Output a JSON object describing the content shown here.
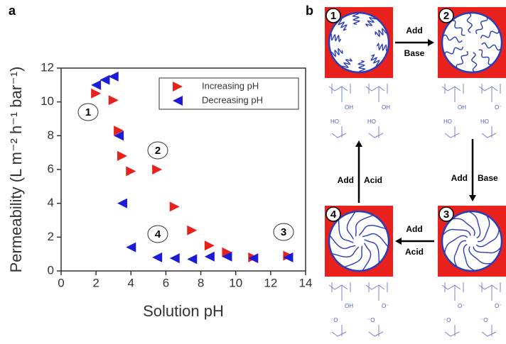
{
  "chart_data": {
    "type": "scatter",
    "panel_label": "a",
    "xlabel": "Solution pH",
    "ylabel": "Permeability (L m⁻² h⁻¹ bar⁻¹)",
    "xlim": [
      0,
      14
    ],
    "xticks": [
      0,
      2,
      4,
      6,
      8,
      10,
      12,
      14
    ],
    "ylim": [
      0,
      12
    ],
    "yticks": [
      0,
      2,
      4,
      6,
      8,
      10,
      12
    ],
    "legend": "upper right",
    "annotations": [
      "1",
      "2",
      "3",
      "4"
    ],
    "series": [
      {
        "name": "Increasing pH",
        "color": "#e8211c",
        "marker": "triangle-right",
        "x": [
          2,
          3,
          3.3,
          3.5,
          4,
          5.5,
          6.5,
          7.5,
          8.5,
          9.5,
          11,
          13
        ],
        "values": [
          10.5,
          10.1,
          8.3,
          6.8,
          5.9,
          6.0,
          3.8,
          2.4,
          1.5,
          1.1,
          0.8,
          0.9
        ]
      },
      {
        "name": "Decreasing pH",
        "color": "#1b1bd8",
        "marker": "triangle-left",
        "x": [
          2,
          2.5,
          3,
          3.3,
          3.5,
          4,
          5.5,
          6.5,
          7.5,
          8.5,
          9.5,
          11,
          13
        ],
        "values": [
          11.0,
          11.3,
          11.5,
          8.0,
          4.0,
          1.4,
          0.8,
          0.75,
          0.7,
          0.85,
          0.85,
          0.75,
          0.8
        ]
      }
    ]
  },
  "diagram": {
    "panel_label": "b",
    "states": [
      {
        "number": "1",
        "groups": [
          "OH",
          "HO",
          "OH",
          "HO"
        ]
      },
      {
        "number": "2",
        "groups": [
          "OH",
          "HO",
          "O⁻",
          "HO"
        ]
      },
      {
        "number": "3",
        "groups": [
          "O⁻",
          "⁻O",
          "O⁻",
          "⁻O"
        ]
      },
      {
        "number": "4",
        "groups": [
          "OH",
          "⁻O",
          "O⁻",
          "⁻O"
        ]
      }
    ],
    "arrows": [
      {
        "first": "Add",
        "second": "Base"
      },
      {
        "first": "Add",
        "second": "Base"
      },
      {
        "first": "Add",
        "second": "Acid"
      },
      {
        "first": "Add",
        "second": "Acid"
      }
    ]
  }
}
